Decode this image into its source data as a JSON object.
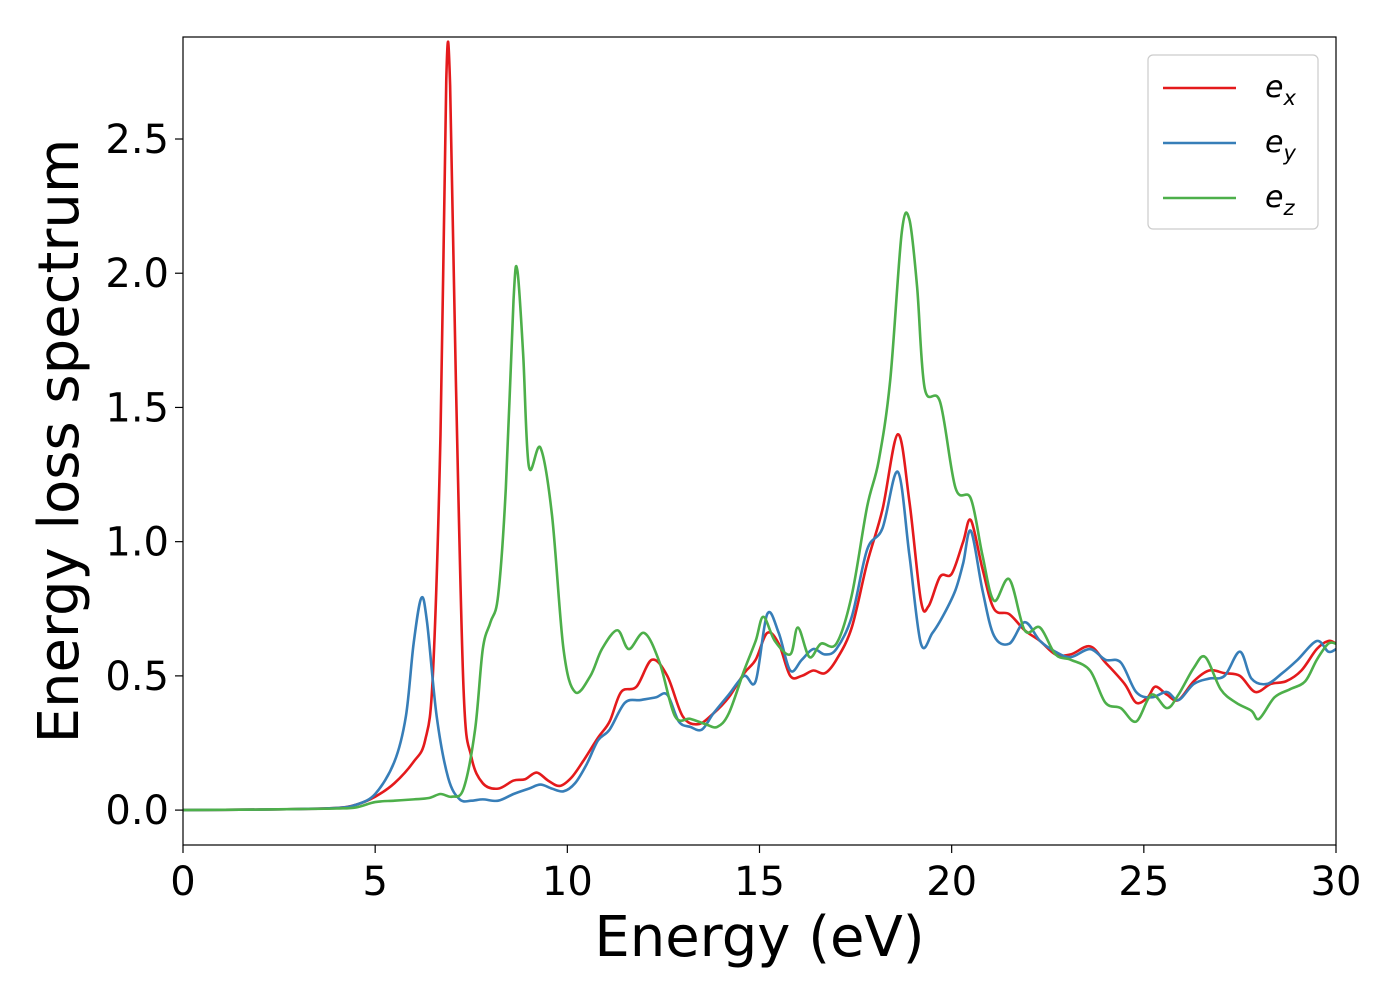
{
  "chart_data": {
    "type": "line",
    "xlabel": "Energy (eV)",
    "ylabel": "Energy loss spectrum",
    "xlim": [
      0,
      30
    ],
    "ylim": [
      -0.13,
      2.88
    ],
    "xticks": [
      0,
      5,
      10,
      15,
      20,
      25,
      30
    ],
    "xtick_labels": [
      "0",
      "5",
      "10",
      "15",
      "20",
      "25",
      "30"
    ],
    "yticks": [
      0.0,
      0.5,
      1.0,
      1.5,
      2.0,
      2.5
    ],
    "ytick_labels": [
      "0.0",
      "0.5",
      "1.0",
      "1.5",
      "2.0",
      "2.5"
    ],
    "grid": false,
    "legend_position": "top-right",
    "series": [
      {
        "name": "e_x",
        "legend_base": "e",
        "legend_sub": "x",
        "color": "#e41a1c",
        "points": [
          [
            0,
            0
          ],
          [
            2,
            0.002
          ],
          [
            3,
            0.004
          ],
          [
            4,
            0.008
          ],
          [
            4.5,
            0.02
          ],
          [
            5,
            0.05
          ],
          [
            5.5,
            0.1
          ],
          [
            6,
            0.18
          ],
          [
            6.3,
            0.26
          ],
          [
            6.5,
            0.5
          ],
          [
            6.7,
            1.4
          ],
          [
            6.85,
            2.72
          ],
          [
            6.95,
            2.7
          ],
          [
            7.1,
            1.6
          ],
          [
            7.3,
            0.45
          ],
          [
            7.5,
            0.2
          ],
          [
            7.8,
            0.1
          ],
          [
            8.2,
            0.08
          ],
          [
            8.6,
            0.11
          ],
          [
            8.9,
            0.115
          ],
          [
            9.2,
            0.14
          ],
          [
            9.5,
            0.11
          ],
          [
            9.8,
            0.09
          ],
          [
            10.1,
            0.12
          ],
          [
            10.4,
            0.18
          ],
          [
            10.8,
            0.27
          ],
          [
            11.1,
            0.33
          ],
          [
            11.4,
            0.44
          ],
          [
            11.8,
            0.46
          ],
          [
            12.2,
            0.56
          ],
          [
            12.6,
            0.5
          ],
          [
            13.0,
            0.35
          ],
          [
            13.4,
            0.32
          ],
          [
            13.8,
            0.36
          ],
          [
            14.2,
            0.42
          ],
          [
            14.6,
            0.51
          ],
          [
            14.9,
            0.56
          ],
          [
            15.2,
            0.66
          ],
          [
            15.5,
            0.62
          ],
          [
            15.8,
            0.5
          ],
          [
            16.1,
            0.5
          ],
          [
            16.4,
            0.52
          ],
          [
            16.7,
            0.51
          ],
          [
            17.0,
            0.56
          ],
          [
            17.4,
            0.68
          ],
          [
            17.8,
            0.92
          ],
          [
            18.2,
            1.12
          ],
          [
            18.6,
            1.4
          ],
          [
            18.9,
            1.15
          ],
          [
            19.2,
            0.78
          ],
          [
            19.4,
            0.76
          ],
          [
            19.7,
            0.87
          ],
          [
            20.0,
            0.88
          ],
          [
            20.3,
            1.0
          ],
          [
            20.5,
            1.08
          ],
          [
            20.8,
            0.9
          ],
          [
            21.1,
            0.75
          ],
          [
            21.5,
            0.73
          ],
          [
            21.9,
            0.67
          ],
          [
            22.3,
            0.63
          ],
          [
            22.7,
            0.58
          ],
          [
            23.1,
            0.58
          ],
          [
            23.6,
            0.61
          ],
          [
            24.0,
            0.55
          ],
          [
            24.5,
            0.47
          ],
          [
            24.8,
            0.4
          ],
          [
            25.1,
            0.42
          ],
          [
            25.3,
            0.46
          ],
          [
            25.6,
            0.43
          ],
          [
            25.9,
            0.41
          ],
          [
            26.3,
            0.48
          ],
          [
            26.7,
            0.52
          ],
          [
            27.1,
            0.51
          ],
          [
            27.5,
            0.5
          ],
          [
            27.9,
            0.44
          ],
          [
            28.3,
            0.47
          ],
          [
            28.7,
            0.48
          ],
          [
            29.1,
            0.52
          ],
          [
            29.5,
            0.6
          ],
          [
            29.8,
            0.63
          ],
          [
            30,
            0.62
          ]
        ]
      },
      {
        "name": "e_y",
        "legend_base": "e",
        "legend_sub": "y",
        "color": "#377eb8",
        "points": [
          [
            0,
            0
          ],
          [
            2,
            0.002
          ],
          [
            3,
            0.004
          ],
          [
            4,
            0.008
          ],
          [
            4.5,
            0.02
          ],
          [
            5,
            0.06
          ],
          [
            5.5,
            0.18
          ],
          [
            5.8,
            0.35
          ],
          [
            6.0,
            0.62
          ],
          [
            6.2,
            0.79
          ],
          [
            6.35,
            0.7
          ],
          [
            6.6,
            0.35
          ],
          [
            6.9,
            0.12
          ],
          [
            7.2,
            0.04
          ],
          [
            7.5,
            0.035
          ],
          [
            7.8,
            0.04
          ],
          [
            8.2,
            0.035
          ],
          [
            8.6,
            0.06
          ],
          [
            9.0,
            0.08
          ],
          [
            9.3,
            0.095
          ],
          [
            9.6,
            0.08
          ],
          [
            9.9,
            0.07
          ],
          [
            10.2,
            0.1
          ],
          [
            10.5,
            0.17
          ],
          [
            10.8,
            0.26
          ],
          [
            11.1,
            0.3
          ],
          [
            11.5,
            0.4
          ],
          [
            11.9,
            0.41
          ],
          [
            12.3,
            0.42
          ],
          [
            12.6,
            0.43
          ],
          [
            12.9,
            0.33
          ],
          [
            13.2,
            0.31
          ],
          [
            13.5,
            0.3
          ],
          [
            13.8,
            0.36
          ],
          [
            14.2,
            0.43
          ],
          [
            14.6,
            0.5
          ],
          [
            14.9,
            0.48
          ],
          [
            15.2,
            0.73
          ],
          [
            15.5,
            0.66
          ],
          [
            15.8,
            0.52
          ],
          [
            16.1,
            0.56
          ],
          [
            16.4,
            0.6
          ],
          [
            16.7,
            0.58
          ],
          [
            17.0,
            0.6
          ],
          [
            17.4,
            0.72
          ],
          [
            17.8,
            0.97
          ],
          [
            18.2,
            1.05
          ],
          [
            18.6,
            1.26
          ],
          [
            18.9,
            0.95
          ],
          [
            19.2,
            0.62
          ],
          [
            19.5,
            0.66
          ],
          [
            19.8,
            0.73
          ],
          [
            20.1,
            0.82
          ],
          [
            20.3,
            0.92
          ],
          [
            20.5,
            1.04
          ],
          [
            20.8,
            0.82
          ],
          [
            21.1,
            0.65
          ],
          [
            21.5,
            0.62
          ],
          [
            21.9,
            0.7
          ],
          [
            22.3,
            0.63
          ],
          [
            22.7,
            0.59
          ],
          [
            23.1,
            0.57
          ],
          [
            23.6,
            0.6
          ],
          [
            24.0,
            0.56
          ],
          [
            24.4,
            0.55
          ],
          [
            24.8,
            0.44
          ],
          [
            25.2,
            0.42
          ],
          [
            25.6,
            0.44
          ],
          [
            25.9,
            0.41
          ],
          [
            26.3,
            0.47
          ],
          [
            26.7,
            0.49
          ],
          [
            27.1,
            0.5
          ],
          [
            27.5,
            0.59
          ],
          [
            27.8,
            0.49
          ],
          [
            28.2,
            0.47
          ],
          [
            28.6,
            0.51
          ],
          [
            29.0,
            0.56
          ],
          [
            29.5,
            0.63
          ],
          [
            29.8,
            0.59
          ],
          [
            30,
            0.6
          ]
        ]
      },
      {
        "name": "e_z",
        "legend_base": "e",
        "legend_sub": "z",
        "color": "#4daf4a",
        "points": [
          [
            0,
            0
          ],
          [
            2,
            0.002
          ],
          [
            3,
            0.004
          ],
          [
            4,
            0.006
          ],
          [
            4.5,
            0.01
          ],
          [
            5,
            0.03
          ],
          [
            5.5,
            0.035
          ],
          [
            6,
            0.04
          ],
          [
            6.4,
            0.045
          ],
          [
            6.7,
            0.06
          ],
          [
            7.0,
            0.05
          ],
          [
            7.3,
            0.08
          ],
          [
            7.6,
            0.3
          ],
          [
            7.8,
            0.6
          ],
          [
            8.0,
            0.7
          ],
          [
            8.2,
            0.8
          ],
          [
            8.4,
            1.2
          ],
          [
            8.6,
            1.9
          ],
          [
            8.7,
            2.01
          ],
          [
            8.85,
            1.7
          ],
          [
            9.0,
            1.28
          ],
          [
            9.3,
            1.35
          ],
          [
            9.6,
            1.1
          ],
          [
            9.9,
            0.6
          ],
          [
            10.2,
            0.44
          ],
          [
            10.6,
            0.5
          ],
          [
            10.9,
            0.6
          ],
          [
            11.3,
            0.67
          ],
          [
            11.6,
            0.6
          ],
          [
            12.0,
            0.66
          ],
          [
            12.4,
            0.55
          ],
          [
            12.8,
            0.35
          ],
          [
            13.2,
            0.34
          ],
          [
            13.6,
            0.32
          ],
          [
            13.9,
            0.31
          ],
          [
            14.2,
            0.36
          ],
          [
            14.6,
            0.52
          ],
          [
            14.9,
            0.63
          ],
          [
            15.1,
            0.72
          ],
          [
            15.4,
            0.63
          ],
          [
            15.8,
            0.58
          ],
          [
            16.0,
            0.68
          ],
          [
            16.3,
            0.57
          ],
          [
            16.6,
            0.62
          ],
          [
            17.0,
            0.62
          ],
          [
            17.4,
            0.8
          ],
          [
            17.8,
            1.13
          ],
          [
            18.1,
            1.3
          ],
          [
            18.4,
            1.6
          ],
          [
            18.7,
            2.15
          ],
          [
            18.9,
            2.2
          ],
          [
            19.1,
            1.95
          ],
          [
            19.3,
            1.57
          ],
          [
            19.7,
            1.52
          ],
          [
            20.1,
            1.2
          ],
          [
            20.5,
            1.16
          ],
          [
            20.8,
            0.95
          ],
          [
            21.1,
            0.78
          ],
          [
            21.5,
            0.86
          ],
          [
            21.9,
            0.67
          ],
          [
            22.3,
            0.68
          ],
          [
            22.7,
            0.58
          ],
          [
            23.1,
            0.56
          ],
          [
            23.6,
            0.52
          ],
          [
            24.0,
            0.4
          ],
          [
            24.4,
            0.38
          ],
          [
            24.8,
            0.33
          ],
          [
            25.2,
            0.43
          ],
          [
            25.6,
            0.38
          ],
          [
            25.9,
            0.43
          ],
          [
            26.3,
            0.53
          ],
          [
            26.6,
            0.57
          ],
          [
            27.0,
            0.45
          ],
          [
            27.4,
            0.4
          ],
          [
            27.8,
            0.37
          ],
          [
            28.0,
            0.34
          ],
          [
            28.4,
            0.42
          ],
          [
            28.8,
            0.45
          ],
          [
            29.2,
            0.48
          ],
          [
            29.5,
            0.56
          ],
          [
            29.8,
            0.62
          ],
          [
            30,
            0.62
          ]
        ]
      }
    ]
  }
}
